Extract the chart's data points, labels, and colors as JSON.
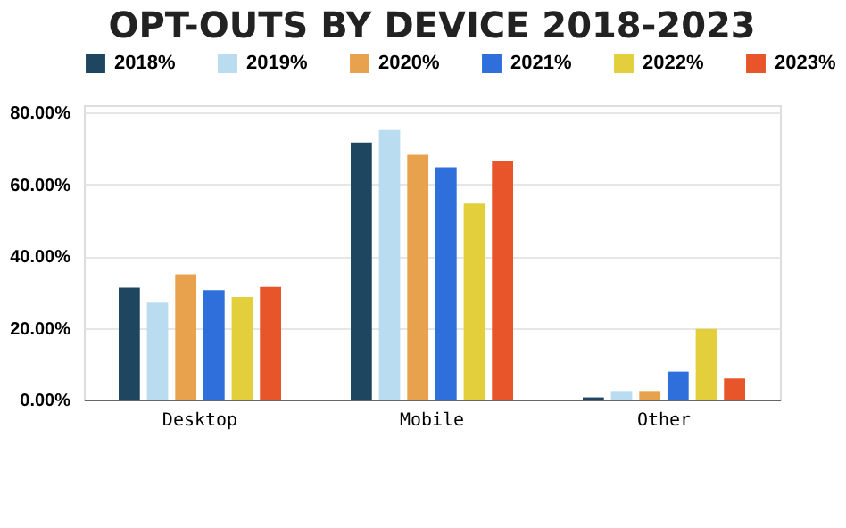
{
  "chart_data": {
    "type": "bar",
    "title": "OPT-OUTS BY DEVICE 2018-2023",
    "categories": [
      "Desktop",
      "Mobile",
      "Other"
    ],
    "series": [
      {
        "name": "2018%",
        "color": "#1f4660",
        "values": [
          31.2,
          71.6,
          0.6
        ]
      },
      {
        "name": "2019%",
        "color": "#b9dcf0",
        "values": [
          27.0,
          75.1,
          2.4
        ]
      },
      {
        "name": "2020%",
        "color": "#e8a24e",
        "values": [
          34.9,
          68.2,
          2.4
        ]
      },
      {
        "name": "2021%",
        "color": "#2f6fdc",
        "values": [
          30.5,
          64.7,
          7.8
        ]
      },
      {
        "name": "2022%",
        "color": "#e3cf3c",
        "values": [
          28.6,
          54.6,
          19.7
        ]
      },
      {
        "name": "2023%",
        "color": "#e8552b",
        "values": [
          31.4,
          66.4,
          5.9
        ]
      }
    ],
    "ylim": [
      0,
      82
    ],
    "yticks": [
      {
        "value": 0,
        "label": "0.00%"
      },
      {
        "value": 20,
        "label": "20.00%"
      },
      {
        "value": 40,
        "label": "40.00%"
      },
      {
        "value": 60,
        "label": "60.00%"
      },
      {
        "value": 80,
        "label": "80.00%"
      }
    ],
    "grid": "y",
    "legend": "top"
  }
}
